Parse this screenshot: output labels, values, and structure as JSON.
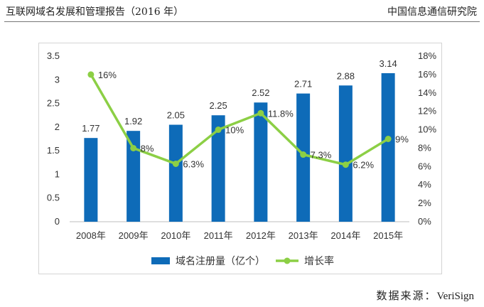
{
  "header": {
    "left_title": "互联网域名发展和管理报告（2016 年）",
    "right_org": "中国信息通信研究院"
  },
  "source": {
    "label": "数据来源：",
    "value": "VeriSign"
  },
  "colors": {
    "bar": "#0e6bb8",
    "line": "#8ccf45",
    "text": "#333333"
  },
  "chart_data": {
    "type": "bar+line",
    "title": "",
    "categories": [
      "2008年",
      "2009年",
      "2010年",
      "2011年",
      "2012年",
      "2013年",
      "2014年",
      "2015年"
    ],
    "series": [
      {
        "name": "域名注册量（亿个）",
        "type": "bar",
        "axis": "left",
        "values": [
          1.77,
          1.92,
          2.05,
          2.25,
          2.52,
          2.71,
          2.88,
          3.14
        ],
        "labels": [
          "1.77",
          "1.92",
          "2.05",
          "2.25",
          "2.52",
          "2.71",
          "2.88",
          "3.14"
        ]
      },
      {
        "name": "增长率",
        "type": "line",
        "axis": "right",
        "values": [
          16,
          8,
          6.3,
          10,
          11.8,
          7.3,
          6.2,
          9
        ],
        "labels": [
          "16%",
          "8%",
          "6.3%",
          "10%",
          "11.8%",
          "7.3%",
          "6.2%",
          "9%"
        ]
      }
    ],
    "y_left": {
      "min": 0,
      "max": 3.5,
      "ticks": [
        "0",
        "0.5",
        "1",
        "1.5",
        "2",
        "2.5",
        "3",
        "3.5"
      ]
    },
    "y_right": {
      "min": 0,
      "max": 18,
      "ticks": [
        "0%",
        "2%",
        "4%",
        "6%",
        "8%",
        "10%",
        "12%",
        "14%",
        "16%",
        "18%"
      ]
    },
    "grid": false,
    "legend_position": "bottom-center"
  }
}
